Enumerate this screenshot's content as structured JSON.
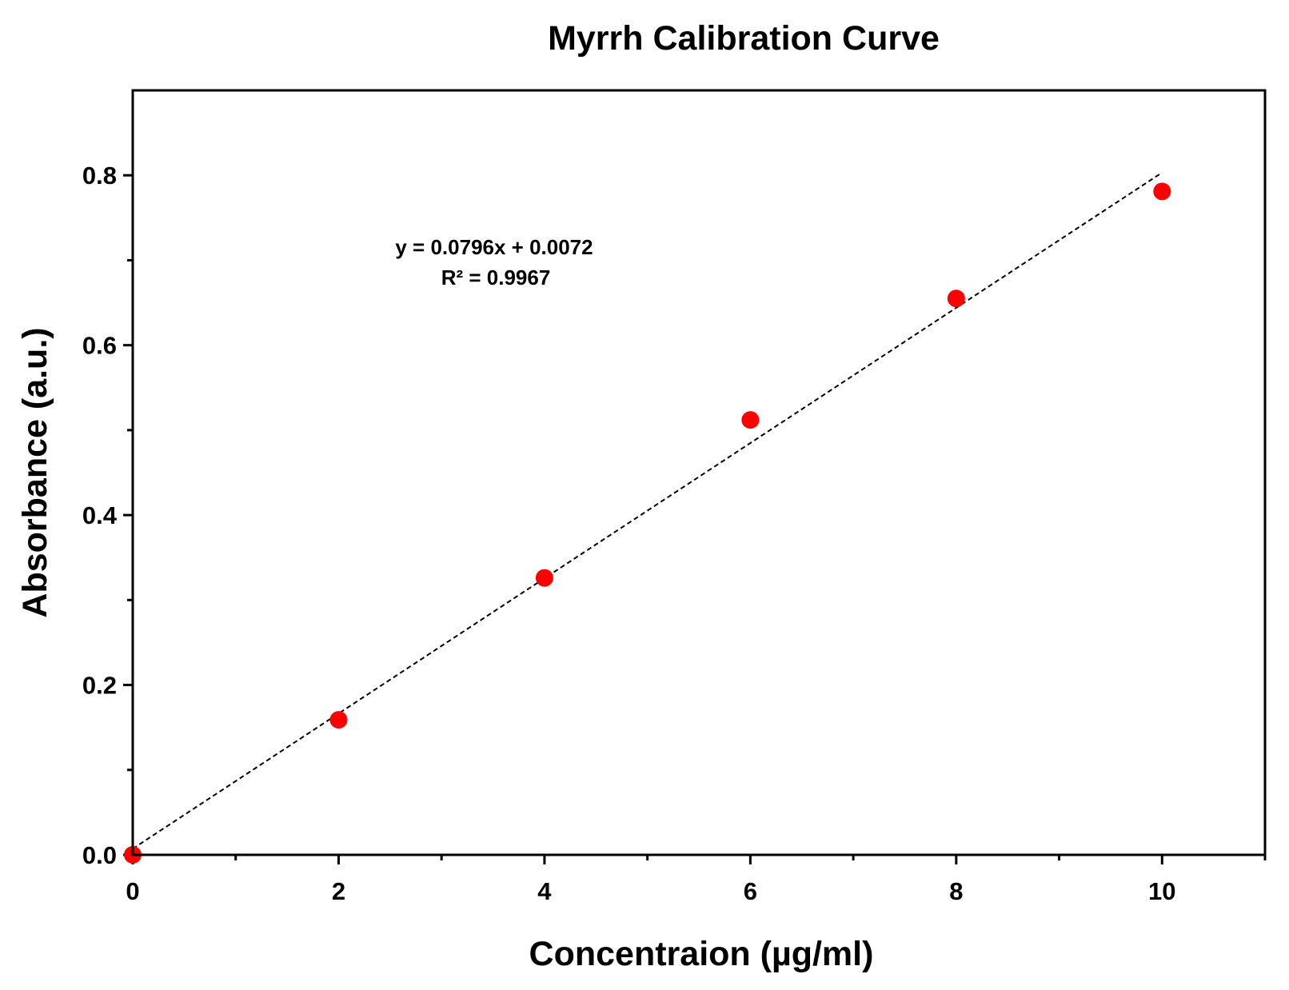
{
  "chart_data": {
    "type": "scatter",
    "title": "Myrrh Calibration Curve",
    "xlabel": "Concentraion (µg/ml)",
    "ylabel": "Absorbance (a.u.)",
    "xlim": [
      0,
      11
    ],
    "ylim": [
      0,
      0.9
    ],
    "x_ticks": [
      0,
      2,
      4,
      6,
      8,
      10
    ],
    "x_tick_labels": [
      "0",
      "2",
      "4",
      "6",
      "8",
      "10"
    ],
    "x_minor_ticks": [
      1,
      3,
      5,
      7,
      9,
      11
    ],
    "y_ticks": [
      0,
      0.2,
      0.4,
      0.6,
      0.8
    ],
    "y_tick_labels": [
      "0.0",
      "0.2",
      "0.4",
      "0.6",
      "0.8"
    ],
    "y_minor_ticks": [
      0.1,
      0.3,
      0.5,
      0.7
    ],
    "grid": false,
    "series": [
      {
        "name": "Myrrh",
        "color": "#ff0000",
        "x": [
          0,
          2,
          4,
          6,
          8,
          10
        ],
        "y": [
          0.0,
          0.159,
          0.326,
          0.512,
          0.655,
          0.781
        ]
      }
    ],
    "fit": {
      "slope": 0.0796,
      "intercept": 0.0072,
      "x_range": [
        0,
        10
      ],
      "style": "dashed",
      "color": "#000000",
      "equation_label": "y = 0.0796x + 0.0072",
      "r2_label": "R² = 0.9967"
    }
  }
}
